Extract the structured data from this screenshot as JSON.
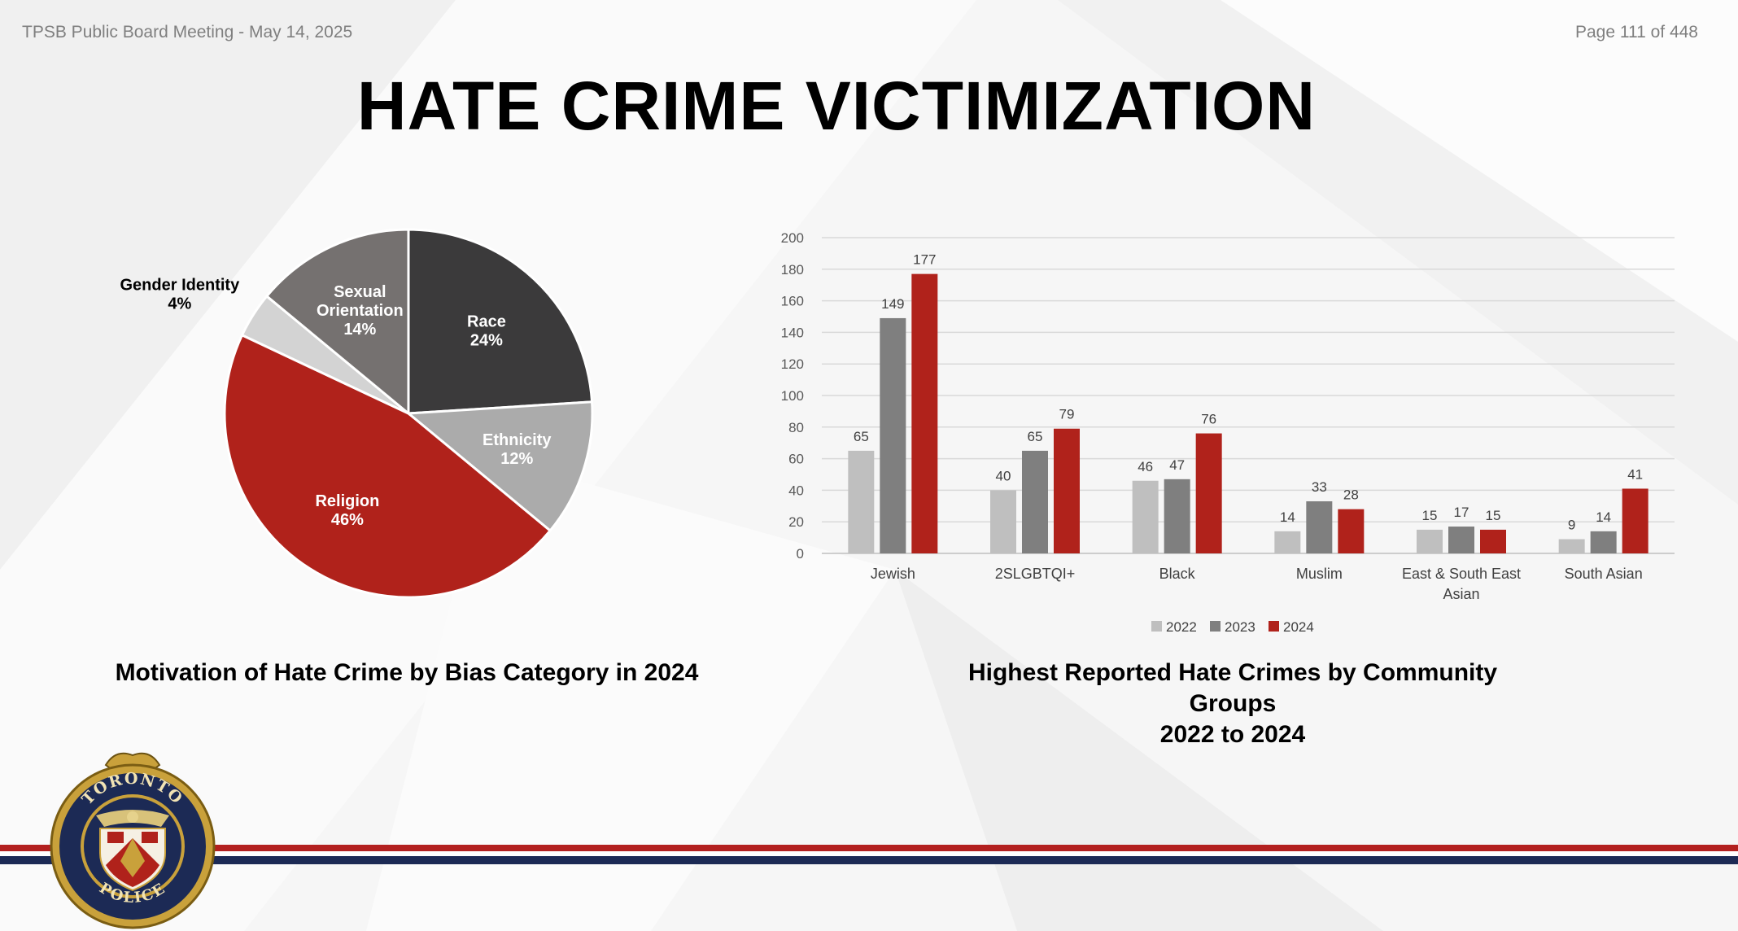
{
  "header": {
    "meeting": "TPSB Public Board Meeting - May 14, 2025",
    "page": "Page 111 of 448"
  },
  "title": "HATE CRIME VICTIMIZATION",
  "logo": {
    "top_text": "TORONTO",
    "bottom_text": "POLICE"
  },
  "colors": {
    "race": "#3b3a3b",
    "ethnicity": "#ababab",
    "religion": "#b0221b",
    "gender_identity": "#d3d3d3",
    "sexual_orientation": "#757170",
    "y2022": "#bfbfbf",
    "y2023": "#7f7f7f",
    "y2024": "#b0221b",
    "stripe_red": "#b3201f",
    "stripe_navy": "#1c2a55"
  },
  "chart_data": [
    {
      "type": "pie",
      "caption": "Motivation of Hate Crime by Bias Category in 2024",
      "slices": [
        {
          "name": "Race",
          "pct_label": "24%",
          "value": 24,
          "color": "#3b3a3b"
        },
        {
          "name": "Ethnicity",
          "pct_label": "12%",
          "value": 12,
          "color": "#ababab"
        },
        {
          "name": "Religion",
          "pct_label": "46%",
          "value": 46,
          "color": "#b0221b"
        },
        {
          "name": "Gender Identity",
          "pct_label": "4%",
          "value": 4,
          "color": "#d3d3d3"
        },
        {
          "name": "Sexual Orientation",
          "pct_label": "14%",
          "value": 14,
          "color": "#757170"
        }
      ]
    },
    {
      "type": "bar",
      "caption_lines": [
        "Highest Reported Hate Crimes by Community",
        "Groups",
        "2022 to 2024"
      ],
      "categories": [
        "Jewish",
        "2SLGBTQI+",
        "Black",
        "Muslim",
        "East & South East Asian",
        "South Asian"
      ],
      "series": [
        {
          "name": "2022",
          "color": "#bfbfbf",
          "values": [
            65,
            40,
            46,
            14,
            15,
            9
          ]
        },
        {
          "name": "2023",
          "color": "#7f7f7f",
          "values": [
            149,
            65,
            47,
            33,
            17,
            14
          ]
        },
        {
          "name": "2024",
          "color": "#b0221b",
          "values": [
            177,
            79,
            76,
            28,
            15,
            41
          ]
        }
      ],
      "yticks": [
        0,
        20,
        40,
        60,
        80,
        100,
        120,
        140,
        160,
        180,
        200
      ],
      "ylim": [
        0,
        200
      ],
      "grid": true,
      "legend": "bottom"
    }
  ]
}
